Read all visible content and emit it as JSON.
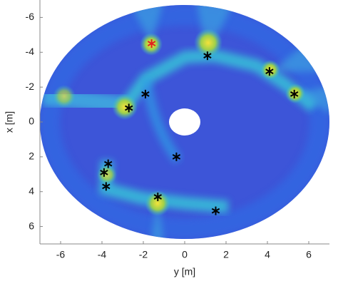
{
  "chart_data": {
    "type": "scatter",
    "x_label": "y [m]",
    "y_label": "x [m]",
    "x": [
      -1.6,
      1.1,
      4.1,
      5.3,
      -1.9,
      -2.7,
      -0.4,
      -3.7,
      -3.9,
      -3.8,
      -1.3,
      1.5
    ],
    "values": [
      -4.5,
      -3.8,
      -2.9,
      -1.6,
      -1.6,
      -0.8,
      2.0,
      2.4,
      2.9,
      3.7,
      4.3,
      5.1
    ],
    "colors": [
      "#e02020",
      "#000000",
      "#000000",
      "#000000",
      "#000000",
      "#000000",
      "#000000",
      "#000000",
      "#000000",
      "#000000",
      "#000000",
      "#000000"
    ],
    "xlim": [
      -7,
      7
    ],
    "ylim": [
      7,
      -7
    ],
    "xticks": [
      -6,
      -4,
      -2,
      0,
      2,
      4,
      6
    ],
    "yticks": [
      -6,
      -4,
      -2,
      0,
      2,
      4,
      6
    ]
  }
}
